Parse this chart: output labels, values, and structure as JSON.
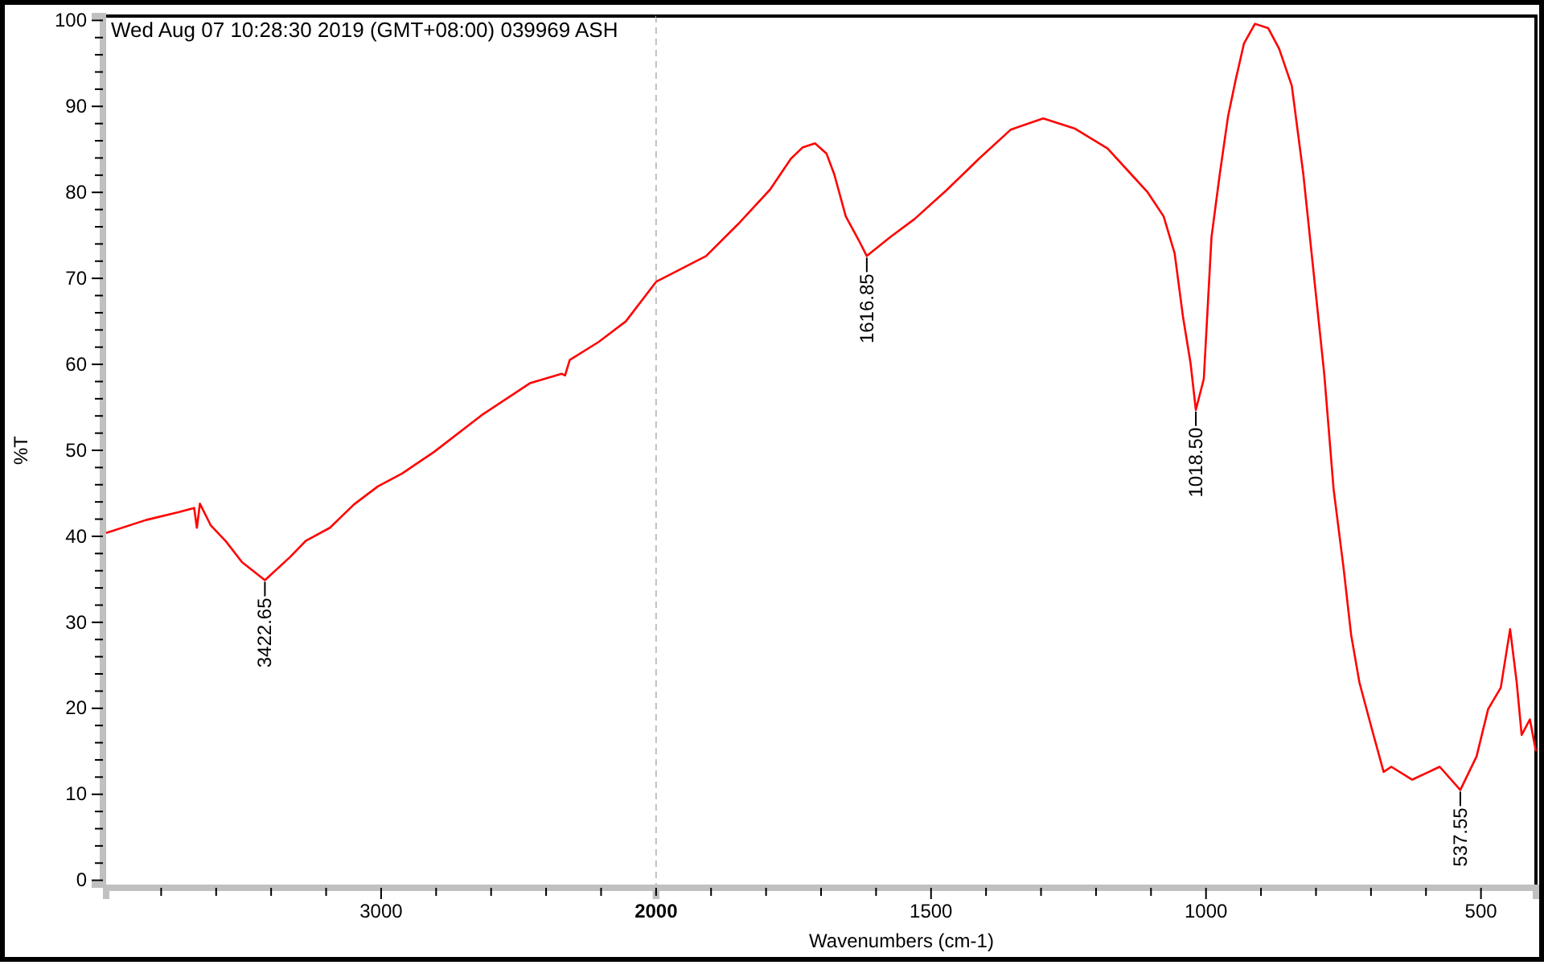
{
  "chart_data": [
    {
      "type": "line",
      "title": "Wed Aug 07 10:28:30 2019 (GMT+08:00)  039969  ASH",
      "ylabel": "%T",
      "xlim": [
        4000,
        2000
      ],
      "ylim": [
        -0.5,
        100.5
      ],
      "xticks": [
        {
          "value": 3800,
          "label": null
        },
        {
          "value": 3600,
          "label": null
        },
        {
          "value": 3400,
          "label": null
        },
        {
          "value": 3200,
          "label": null
        },
        3000,
        {
          "value": 2800,
          "label": null
        },
        {
          "value": 2600,
          "label": null
        },
        {
          "value": 2400,
          "label": null
        },
        {
          "value": 2200,
          "label": null
        },
        2000
      ],
      "ref_lines": [
        {
          "axis": "x",
          "value": 2000,
          "color": "#c0c0c0",
          "line_style": "dashed"
        }
      ],
      "yticks": [
        0,
        {
          "value": 2,
          "label": null
        },
        {
          "value": 4,
          "label": null
        },
        {
          "value": 6,
          "label": null
        },
        {
          "value": 8,
          "label": null
        },
        10,
        {
          "value": 12,
          "label": null
        },
        {
          "value": 14,
          "label": null
        },
        {
          "value": 16,
          "label": null
        },
        {
          "value": 18,
          "label": null
        },
        20,
        {
          "value": 22,
          "label": null
        },
        {
          "value": 24,
          "label": null
        },
        {
          "value": 26,
          "label": null
        },
        {
          "value": 28,
          "label": null
        },
        30,
        {
          "value": 32,
          "label": null
        },
        {
          "value": 34,
          "label": null
        },
        {
          "value": 36,
          "label": null
        },
        {
          "value": 38,
          "label": null
        },
        40,
        {
          "value": 42,
          "label": null
        },
        {
          "value": 44,
          "label": null
        },
        {
          "value": 46,
          "label": null
        },
        {
          "value": 48,
          "label": null
        },
        50,
        {
          "value": 52,
          "label": null
        },
        {
          "value": 54,
          "label": null
        },
        {
          "value": 56,
          "label": null
        },
        {
          "value": 58,
          "label": null
        },
        60,
        {
          "value": 62,
          "label": null
        },
        {
          "value": 64,
          "label": null
        },
        {
          "value": 66,
          "label": null
        },
        {
          "value": 68,
          "label": null
        },
        70,
        {
          "value": 72,
          "label": null
        },
        {
          "value": 74,
          "label": null
        },
        {
          "value": 76,
          "label": null
        },
        {
          "value": 78,
          "label": null
        },
        80,
        {
          "value": 82,
          "label": null
        },
        {
          "value": 84,
          "label": null
        },
        {
          "value": 86,
          "label": null
        },
        {
          "value": 88,
          "label": null
        },
        90,
        {
          "value": 92,
          "label": null
        },
        {
          "value": 94,
          "label": null
        },
        {
          "value": 96,
          "label": null
        },
        {
          "value": 98,
          "label": null
        },
        100
      ],
      "marker": "none",
      "line_style": "solid",
      "annotations": [
        {
          "text": "3422.65",
          "x": 3422.65,
          "y": 34.9
        }
      ],
      "series": [
        {
          "color": "#ff0000",
          "x": [
            4000,
            3855,
            3738,
            3680,
            3670,
            3659,
            3620,
            3564,
            3506,
            3422.65,
            3331,
            3273,
            3186,
            3099,
            3012,
            2924,
            2808,
            2634,
            2459,
            2343,
            2331,
            2314,
            2209,
            2110,
            2000
          ],
          "values": [
            40.4,
            41.9,
            42.8,
            43.3,
            41.0,
            43.8,
            41.3,
            39.4,
            37.0,
            34.9,
            37.6,
            39.5,
            41.0,
            43.7,
            45.8,
            47.3,
            49.8,
            54.1,
            57.8,
            58.9,
            58.7,
            60.5,
            62.6,
            65.0,
            69.6
          ]
        }
      ]
    },
    {
      "type": "line",
      "xlabel": "Wavenumbers (cm-1)",
      "xlim": [
        2000,
        400
      ],
      "ylim": [
        -0.5,
        100.5
      ],
      "tick_labels": "x",
      "xticks": [
        {
          "value": 2000,
          "label": null
        },
        {
          "value": 1900,
          "label": null
        },
        {
          "value": 1800,
          "label": null
        },
        {
          "value": 1700,
          "label": null
        },
        {
          "value": 1600,
          "label": null
        },
        1500,
        {
          "value": 1400,
          "label": null
        },
        {
          "value": 1300,
          "label": null
        },
        {
          "value": 1200,
          "label": null
        },
        {
          "value": 1100,
          "label": null
        },
        1000,
        {
          "value": 900,
          "label": null
        },
        {
          "value": 800,
          "label": null
        },
        {
          "value": 700,
          "label": null
        },
        {
          "value": 600,
          "label": null
        },
        500
      ],
      "marker": "none",
      "line_style": "solid",
      "annotations": [
        {
          "text": "1616.85",
          "x": 1616.85,
          "y": 72.6
        },
        {
          "text": "1018.50",
          "x": 1018.5,
          "y": 54.7
        },
        {
          "text": "537.55",
          "x": 537.55,
          "y": 10.5
        }
      ],
      "series": [
        {
          "color": "#ff0000",
          "x": [
            2000,
            1909,
            1851,
            1793,
            1755,
            1734,
            1711,
            1690,
            1676,
            1655,
            1632,
            1616.85,
            1574,
            1530,
            1471,
            1413,
            1355,
            1296,
            1238,
            1179,
            1136,
            1106,
            1077,
            1057,
            1042,
            1028,
            1018.5,
            1004,
            990,
            975,
            960,
            946,
            931,
            911,
            887,
            867,
            844,
            823,
            806,
            785,
            768,
            750,
            736,
            721,
            698,
            677,
            663,
            625,
            575,
            537.55,
            508,
            487,
            464,
            447,
            435,
            426,
            411,
            400
          ],
          "values": [
            69.6,
            72.6,
            76.3,
            80.3,
            83.9,
            85.2,
            85.7,
            84.5,
            82.1,
            77.2,
            74.5,
            72.6,
            74.8,
            76.9,
            80.3,
            83.9,
            87.3,
            88.6,
            87.4,
            85.1,
            82.1,
            80.0,
            77.2,
            72.9,
            65.6,
            60.1,
            54.7,
            58.3,
            74.8,
            82.1,
            88.8,
            93.1,
            97.3,
            99.6,
            99.1,
            96.7,
            92.4,
            82.1,
            71.7,
            58.9,
            45.5,
            36.4,
            28.5,
            23.0,
            17.5,
            12.6,
            13.2,
            11.7,
            13.2,
            10.5,
            14.4,
            19.9,
            22.4,
            29.2,
            23.0,
            16.9,
            18.7,
            15.0
          ]
        }
      ]
    }
  ]
}
